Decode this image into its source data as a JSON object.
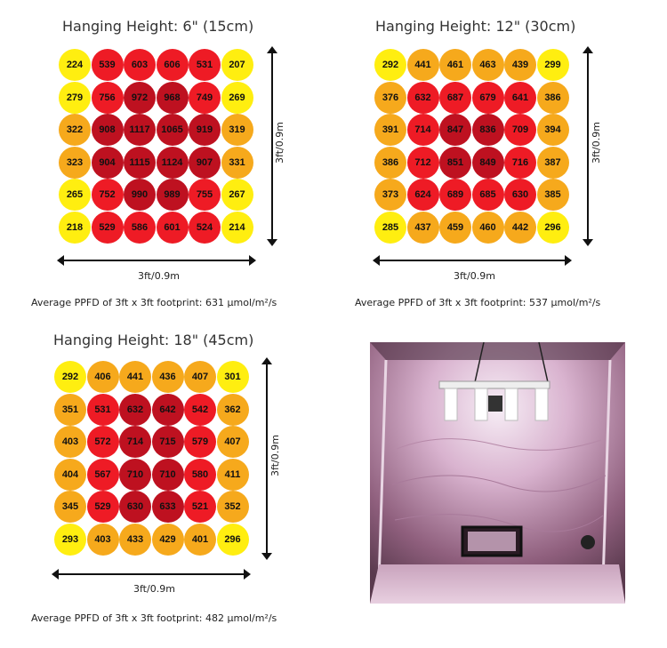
{
  "colors": {
    "yellow": "#ffee10",
    "orange": "#f6a91c",
    "red": "#ee1b25",
    "darkred": "#be1120"
  },
  "chart_data": [
    {
      "type": "heatmap",
      "title": "Hanging Height: 6\" (15cm)",
      "xlabel": "3ft/0.9m",
      "ylabel": "3ft/0.9m",
      "values": [
        [
          224,
          539,
          603,
          606,
          531,
          207
        ],
        [
          279,
          756,
          972,
          968,
          749,
          269
        ],
        [
          322,
          908,
          1117,
          1065,
          919,
          319
        ],
        [
          323,
          904,
          1115,
          1124,
          907,
          331
        ],
        [
          265,
          752,
          990,
          989,
          755,
          267
        ],
        [
          218,
          529,
          586,
          601,
          524,
          214
        ]
      ],
      "caption": "Average PPFD of 3ft x 3ft footprint: 631 µmol/m²/s"
    },
    {
      "type": "heatmap",
      "title": "Hanging Height: 12\" (30cm)",
      "xlabel": "3ft/0.9m",
      "ylabel": "3ft/0.9m",
      "values": [
        [
          292,
          441,
          461,
          463,
          439,
          299
        ],
        [
          376,
          632,
          687,
          679,
          641,
          386
        ],
        [
          391,
          714,
          847,
          836,
          709,
          394
        ],
        [
          386,
          712,
          851,
          849,
          716,
          387
        ],
        [
          373,
          624,
          689,
          685,
          630,
          385
        ],
        [
          285,
          437,
          459,
          460,
          442,
          296
        ]
      ],
      "caption": "Average PPFD of 3ft x 3ft footprint: 537 µmol/m²/s"
    },
    {
      "type": "heatmap",
      "title": "Hanging Height: 18\" (45cm)",
      "xlabel": "3ft/0.9m",
      "ylabel": "3ft/0.9m",
      "values": [
        [
          292,
          406,
          441,
          436,
          407,
          301
        ],
        [
          351,
          531,
          632,
          642,
          542,
          362
        ],
        [
          403,
          572,
          714,
          715,
          579,
          407
        ],
        [
          404,
          567,
          710,
          710,
          580,
          411
        ],
        [
          345,
          529,
          630,
          633,
          521,
          352
        ],
        [
          293,
          403,
          433,
          429,
          401,
          296
        ]
      ],
      "caption": "Average PPFD of 3ft x 3ft footprint: 482 µmol/m²/s"
    }
  ]
}
